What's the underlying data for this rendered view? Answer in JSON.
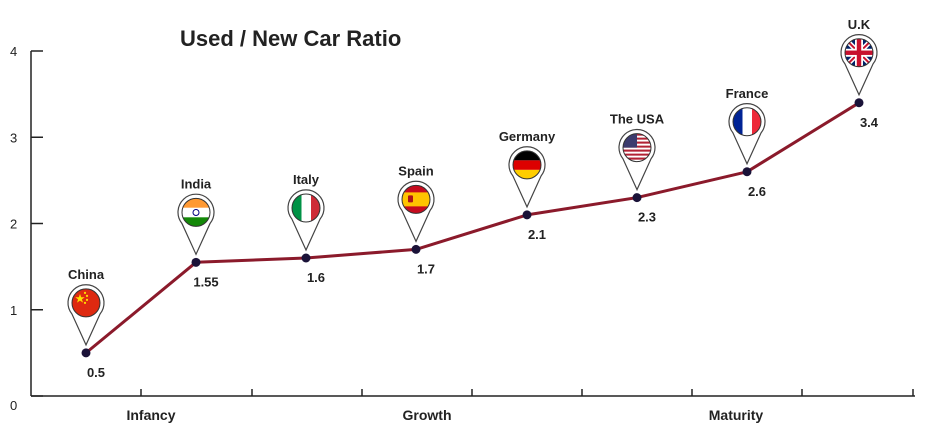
{
  "chart_data": {
    "type": "line",
    "title": "Used / New Car Ratio",
    "xlabel": "",
    "ylabel": "",
    "ylim": [
      0,
      4
    ],
    "y_ticks": [
      "0",
      "1",
      "2",
      "3",
      "4"
    ],
    "line_color": "#8b1a2b",
    "marker_color": "#1a1238",
    "grid": false,
    "stages": [
      "Infancy",
      "Growth",
      "Maturity"
    ],
    "points": [
      {
        "country": "China",
        "value": 0.5,
        "label": "0.5",
        "flag": "china-flag-icon"
      },
      {
        "country": "India",
        "value": 1.55,
        "label": "1.55",
        "flag": "india-flag-icon"
      },
      {
        "country": "Italy",
        "value": 1.6,
        "label": "1.6",
        "flag": "italy-flag-icon"
      },
      {
        "country": "Spain",
        "value": 1.7,
        "label": "1.7",
        "flag": "spain-flag-icon"
      },
      {
        "country": "Germany",
        "value": 2.1,
        "label": "2.1",
        "flag": "germany-flag-icon"
      },
      {
        "country": "The USA",
        "value": 2.3,
        "label": "2.3",
        "flag": "usa-flag-icon"
      },
      {
        "country": "France",
        "value": 2.6,
        "label": "2.6",
        "flag": "france-flag-icon"
      },
      {
        "country": "U.K",
        "value": 3.4,
        "label": "3.4",
        "flag": "uk-flag-icon"
      }
    ]
  }
}
